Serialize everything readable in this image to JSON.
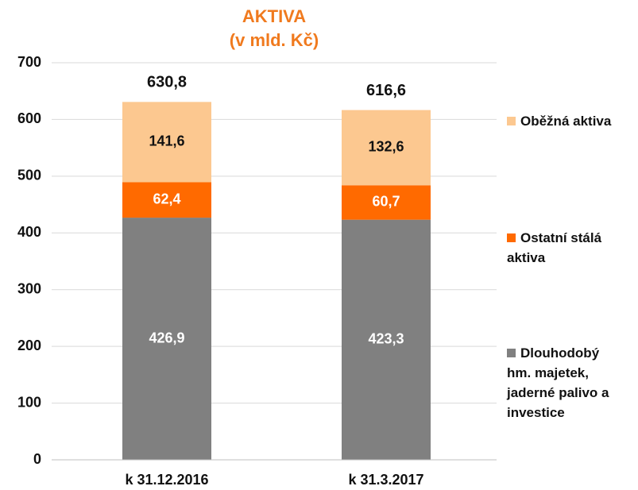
{
  "chart_data": {
    "type": "stacked_bar",
    "title": "AKTIVA",
    "subtitle": "(v mld. Kč)",
    "categories": [
      "k 31.12.2016",
      "k 31.3.2017"
    ],
    "series": [
      {
        "name": "Dlouhodobý hm. majetek, jaderné palivo a investice",
        "color": "#808080",
        "values": [
          426.9,
          423.3
        ],
        "value_labels": [
          "426,9",
          "423,3"
        ]
      },
      {
        "name": "Ostatní stálá aktiva",
        "color": "#ff6a00",
        "values": [
          62.4,
          60.7
        ],
        "value_labels": [
          "62,4",
          "60,7"
        ]
      },
      {
        "name": "Oběžná aktiva",
        "color": "#fcc890",
        "values": [
          141.6,
          132.6
        ],
        "value_labels": [
          "141,6",
          "132,6"
        ]
      }
    ],
    "totals": [
      630.8,
      616.6
    ],
    "total_labels": [
      "630,8",
      "616,6"
    ],
    "ylim": [
      0,
      700
    ],
    "yticks": [
      0,
      100,
      200,
      300,
      400,
      500,
      600,
      700
    ],
    "grid": true
  }
}
